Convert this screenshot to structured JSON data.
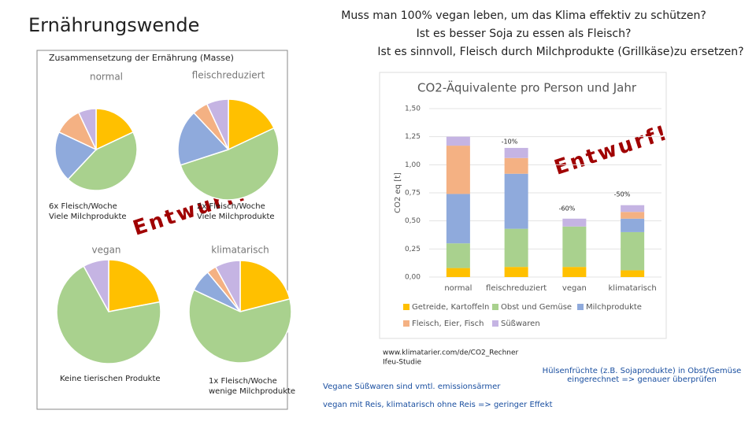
{
  "slide": {
    "title": "Ernährungswende",
    "questions": [
      "Muss man 100% vegan leben, um das Klima effektiv zu schützen?",
      "Ist es besser Soja zu essen als Fleisch?",
      "Ist es sinnvoll, Fleisch durch Milchprodukte (Grillkäse)zu ersetzen?"
    ],
    "pie_heading": "Zusammensetzung der Ernährung (Masse)",
    "watermarks": [
      "Entwurf!",
      "Entwurf!"
    ],
    "source": [
      "www.klimatarier.com/de/CO2_Rechner",
      "Ifeu-Studie"
    ],
    "notes": [
      "Vegane Süßwaren sind vmtl. emissionsärmer",
      "vegan mit Reis, klimatarisch ohne Reis => geringer Effekt",
      "Hülsenfrüchte (z.B. Sojaprodukte) in Obst/Gemüse eingerechnet => genauer überprüfen"
    ]
  },
  "chart_data": [
    {
      "type": "pie",
      "title": "normal",
      "caption": [
        "6x Fleisch/Woche",
        "Viele Milchprodukte"
      ],
      "values": [
        18,
        44,
        20,
        11,
        7
      ],
      "colors": [
        "#ffc000",
        "#a9d18e",
        "#8faadc",
        "#f4b183",
        "#c5b4e3"
      ]
    },
    {
      "type": "pie",
      "title": "fleischreduziert",
      "caption": [
        "2x Fleisch/Woche",
        "Viele Milchprodukte"
      ],
      "values": [
        18,
        52,
        18,
        5,
        7
      ],
      "colors": [
        "#ffc000",
        "#a9d18e",
        "#8faadc",
        "#f4b183",
        "#c5b4e3"
      ]
    },
    {
      "type": "pie",
      "title": "vegan",
      "caption": [
        "Keine tierischen Produkte"
      ],
      "values": [
        22,
        70,
        8
      ],
      "colors": [
        "#ffc000",
        "#a9d18e",
        "#c5b4e3"
      ]
    },
    {
      "type": "pie",
      "title": "klimatarisch",
      "caption": [
        "1x Fleisch/Woche",
        "wenige Milchprodukte"
      ],
      "values": [
        21,
        61,
        7,
        3,
        8
      ],
      "colors": [
        "#ffc000",
        "#a9d18e",
        "#8faadc",
        "#f4b183",
        "#c5b4e3"
      ]
    },
    {
      "type": "bar",
      "stacked": true,
      "title": "CO2-Äquivalente pro Person und Jahr",
      "y_label": "CO2 eq [t]",
      "categories": [
        "normal",
        "fleischreduziert",
        "vegan",
        "klimatarisch"
      ],
      "series": [
        {
          "name": "Getreide, Kartoffeln",
          "color": "#ffc000",
          "values": [
            0.08,
            0.09,
            0.09,
            0.06
          ]
        },
        {
          "name": "Obst und Gemüse",
          "color": "#a9d18e",
          "values": [
            0.22,
            0.34,
            0.36,
            0.34
          ]
        },
        {
          "name": "Milchprodukte",
          "color": "#8faadc",
          "values": [
            0.44,
            0.49,
            0,
            0.12
          ]
        },
        {
          "name": "Fleisch, Eier, Fisch",
          "color": "#f4b183",
          "values": [
            0.43,
            0.14,
            0,
            0.06
          ]
        },
        {
          "name": "Süßwaren",
          "color": "#c5b4e3",
          "values": [
            0.08,
            0.09,
            0.07,
            0.06
          ]
        }
      ],
      "ylim": [
        0,
        1.5
      ],
      "yticks": [
        {
          "value": 0,
          "label": "0,00"
        },
        {
          "value": 0.25,
          "label": "0,25"
        },
        {
          "value": 0.5,
          "label": "0,50"
        },
        {
          "value": 0.75,
          "label": "0,75"
        },
        {
          "value": 1,
          "label": "1,00"
        },
        {
          "value": 1.25,
          "label": "1,25"
        },
        {
          "value": 1.5,
          "label": "1,50"
        }
      ],
      "grid": true,
      "annotations": [
        "-10%",
        "-60%",
        "-50%"
      ]
    }
  ]
}
